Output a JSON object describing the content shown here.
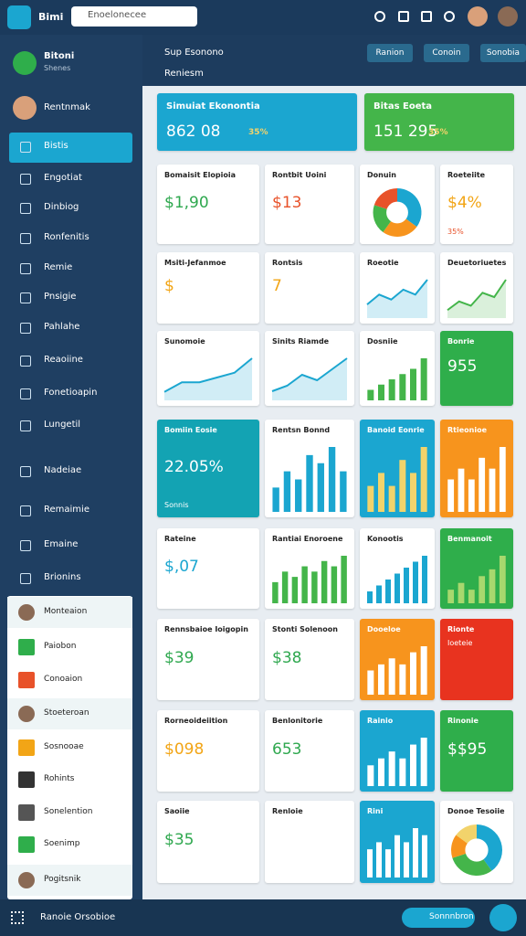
{
  "topbar": {
    "brand": "Bimi",
    "search": "Enoelonecee"
  },
  "sidebar": {
    "profile": {
      "name": "Bitoni",
      "sub": "Shenes"
    },
    "user": "Rentnmak",
    "items": [
      "Bistis",
      "Engotiat",
      "Dinbiog",
      "Ronfenitis",
      "Remie",
      "Pnsigie",
      "Pahlahe",
      "Reaoiine",
      "Fonetioapin",
      "Lungetil",
      "Nadeiae",
      "Remaimie",
      "Emaine",
      "Brionins"
    ],
    "panel_items": [
      "Monteaion",
      "Paiobon",
      "Conoaion",
      "Stoeteroan",
      "Sosnooae",
      "Rohints",
      "Sonelention",
      "Soenimp",
      "Pogitsnik"
    ]
  },
  "header": {
    "crumb1": "Sup Esonono",
    "crumb2": "Reniesm",
    "buttons": [
      "Ranion",
      "Conoin",
      "Sonobia"
    ]
  },
  "banners": [
    {
      "title": "Simuiat Ekonontia",
      "value": "862 08",
      "badge": "35%",
      "bg": "#1ba6d0"
    },
    {
      "title": "Bitas Eoeta",
      "value": "151 295",
      "badge": "35%",
      "bg": "#44b54a"
    }
  ],
  "cards": [
    {
      "kind": "stat",
      "title": "Bomaisit Elopioia",
      "value": "$1,90",
      "bg": "#ffffff",
      "accent": "#2fa84f"
    },
    {
      "kind": "stat",
      "title": "Rontbit Uoini",
      "value": "$13",
      "bg": "#ffffff",
      "accent": "#e8522a"
    },
    {
      "kind": "pie",
      "title": "Donuin",
      "values": [
        35,
        25,
        20,
        20
      ],
      "colors": [
        "#1ba6d0",
        "#f7941d",
        "#44b54a",
        "#e8522a"
      ],
      "bg": "#ffffff"
    },
    {
      "kind": "stat",
      "title": "Roeteiite",
      "value": "$4%",
      "sub": "35%",
      "bg": "#ffffff",
      "accent": "#f2a516"
    },
    {
      "kind": "stat",
      "title": "Msiti-Jefanmoe",
      "value": "$",
      "bg": "#ffffff",
      "accent": "#f2a516"
    },
    {
      "kind": "stat",
      "title": "Rontsis",
      "value": "7",
      "bg": "#ffffff",
      "accent": "#f2a516"
    },
    {
      "kind": "line",
      "title": "Roeotie",
      "values": [
        2,
        4,
        3,
        5,
        4,
        7
      ],
      "color": "#1ba6d0",
      "bg": "#ffffff"
    },
    {
      "kind": "line",
      "title": "Deuetoriuetes",
      "values": [
        1,
        3,
        2,
        5,
        4,
        8
      ],
      "color": "#44b54a",
      "bg": "#ffffff"
    },
    {
      "kind": "line",
      "title": "Sunomoie",
      "values": [
        1,
        3,
        3,
        4,
        5,
        8
      ],
      "color": "#1ba6d0",
      "bg": "#ffffff"
    },
    {
      "kind": "line",
      "title": "Sinits Riamde",
      "values": [
        1,
        2,
        4,
        3,
        5,
        7
      ],
      "color": "#1ba6d0",
      "bg": "#ffffff"
    },
    {
      "kind": "bars",
      "title": "Dosniie",
      "values": [
        2,
        3,
        4,
        5,
        6,
        8
      ],
      "color": "#44b54a",
      "bg": "#ffffff"
    },
    {
      "kind": "stat",
      "title": "Bonrie",
      "value": "955",
      "bg": "#2fae4b",
      "accent": "#ffffff"
    },
    {
      "kind": "stat",
      "title": "Bomiin Eosie",
      "value": "22.05%",
      "sub": "Sonnis",
      "bg": "#13a3b3",
      "accent": "#ffffff"
    },
    {
      "kind": "bars",
      "title": "Rentsn Bonnd",
      "values": [
        3,
        5,
        4,
        7,
        6,
        8,
        5
      ],
      "color": "#1ba6d0",
      "bg": "#ffffff"
    },
    {
      "kind": "bars",
      "title": "Banoid Eonrie",
      "values": [
        2,
        3,
        2,
        4,
        3,
        5
      ],
      "color": "#f2d36b",
      "bg": "#1ba6d0"
    },
    {
      "kind": "bars",
      "title": "Rtieonioe",
      "values": [
        3,
        4,
        3,
        5,
        4,
        6
      ],
      "color": "#ffffff",
      "bg": "#f7941d"
    },
    {
      "kind": "stat",
      "title": "Rateine",
      "value": "$,07",
      "bg": "#ffffff",
      "accent": "#1ba6d0"
    },
    {
      "kind": "bars",
      "title": "Rantiai Enoroene",
      "values": [
        4,
        6,
        5,
        7,
        6,
        8,
        7,
        9
      ],
      "color": "#44b54a",
      "bg": "#ffffff"
    },
    {
      "kind": "bars",
      "title": "Konootis",
      "values": [
        2,
        3,
        4,
        5,
        6,
        7,
        8
      ],
      "color": "#1ba6d0",
      "bg": "#ffffff"
    },
    {
      "kind": "bars",
      "title": "Benmanoit",
      "values": [
        2,
        3,
        2,
        4,
        5,
        7
      ],
      "color": "#a8d86e",
      "bg": "#2fae4b"
    },
    {
      "kind": "stat",
      "title": "Rennsbaioe Ioigopin",
      "value": "$39",
      "bg": "#ffffff",
      "accent": "#2fa84f"
    },
    {
      "kind": "stat",
      "title": "Stonti Solenoon",
      "value": "$38",
      "bg": "#ffffff",
      "accent": "#2fa84f"
    },
    {
      "kind": "bars",
      "title": "Dooeloe",
      "values": [
        4,
        5,
        6,
        5,
        7,
        8
      ],
      "color": "#ffffff",
      "bg": "#f7941d"
    },
    {
      "kind": "stat",
      "title": "Rionte",
      "sub": "Ioeteie",
      "bg": "#e8331f",
      "accent": "#ffffff"
    },
    {
      "kind": "stat",
      "title": "Rorneoideiition",
      "value": "$098",
      "bg": "#ffffff",
      "accent": "#f2a516"
    },
    {
      "kind": "stat",
      "title": "Benlonitorie",
      "value": "653",
      "bg": "#ffffff",
      "accent": "#2fa84f"
    },
    {
      "kind": "bars",
      "title": "Rainio",
      "values": [
        3,
        4,
        5,
        4,
        6,
        7
      ],
      "color": "#ffffff",
      "bg": "#1ba6d0"
    },
    {
      "kind": "stat",
      "title": "Rinonie",
      "value": "$$95",
      "bg": "#2fae4b",
      "accent": "#ffffff"
    },
    {
      "kind": "stat",
      "title": "Saoiie",
      "value": "$35",
      "bg": "#ffffff",
      "accent": "#2fa84f"
    },
    {
      "kind": "stat",
      "title": "Renloie",
      "bg": "#ffffff",
      "accent": "#2fa84f"
    },
    {
      "kind": "bars",
      "title": "Rini",
      "values": [
        4,
        5,
        4,
        6,
        5,
        7,
        6
      ],
      "color": "#ffffff",
      "bg": "#1ba6d0"
    },
    {
      "kind": "pie",
      "title": "Donoe Tesoiie",
      "values": [
        40,
        30,
        15,
        15
      ],
      "colors": [
        "#1ba6d0",
        "#44b54a",
        "#f7941d",
        "#f2d36b"
      ],
      "bg": "#ffffff"
    }
  ],
  "footer": {
    "label": "Ranoie Orsobioe",
    "button": "Sonnnbron"
  }
}
